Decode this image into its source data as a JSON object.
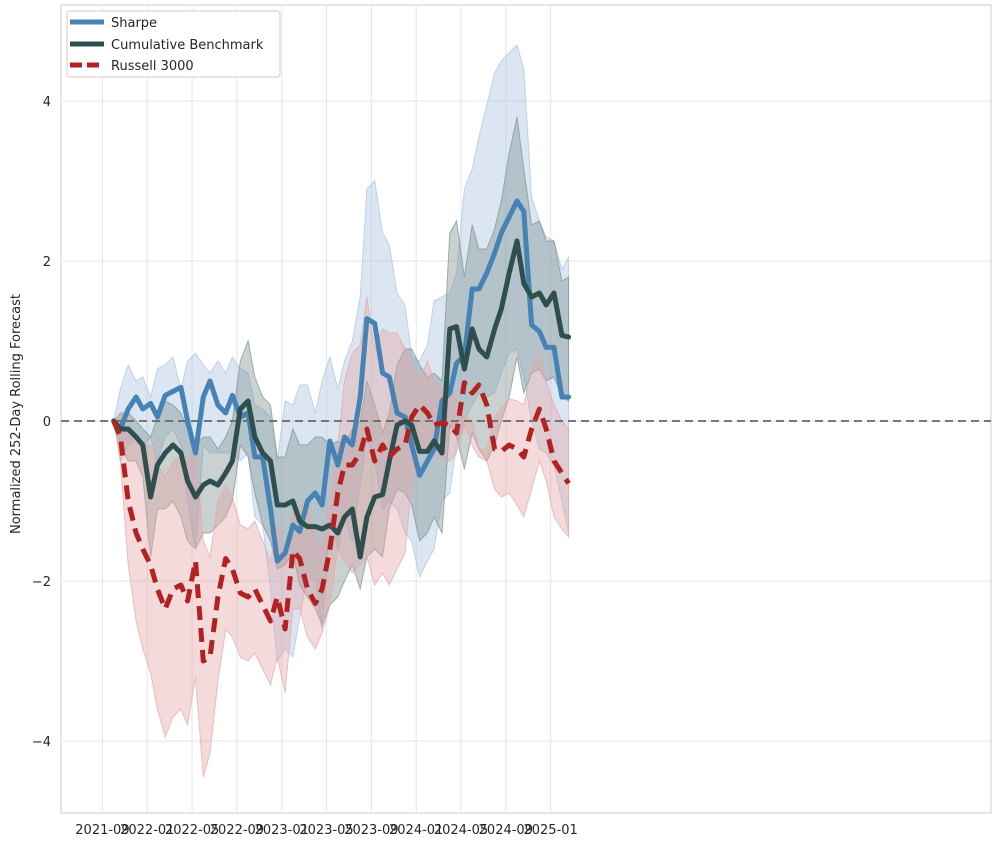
{
  "chart_data": {
    "type": "line",
    "title": "",
    "xlabel": "",
    "ylabel": "Normalized 252-Day Rolling Forecast",
    "ylim": [
      -4.9,
      5.2
    ],
    "xlim_months": [
      -3.7,
      79.3
    ],
    "x_ticks": [
      {
        "m": 0,
        "label": "2021-09"
      },
      {
        "m": 4,
        "label": "2022-01"
      },
      {
        "m": 8,
        "label": "2022-05"
      },
      {
        "m": 12,
        "label": "2022-09"
      },
      {
        "m": 16,
        "label": "2023-01"
      },
      {
        "m": 20,
        "label": "2023-05"
      },
      {
        "m": 24,
        "label": "2023-09"
      },
      {
        "m": 28,
        "label": "2024-01"
      },
      {
        "m": 32,
        "label": "2024-05"
      },
      {
        "m": 36,
        "label": "2024-09"
      },
      {
        "m": 40,
        "label": "2025-01"
      }
    ],
    "y_ticks": [
      {
        "v": -4,
        "label": "−4"
      },
      {
        "v": -2,
        "label": "−2"
      },
      {
        "v": 0,
        "label": "0"
      },
      {
        "v": 2,
        "label": "2"
      },
      {
        "v": 4,
        "label": "4"
      }
    ],
    "grid": true,
    "reference_line": {
      "y": 0,
      "style": "dashed",
      "color": "#666666"
    },
    "legend": {
      "placement": "top-left",
      "entries": [
        {
          "name": "Sharpe",
          "color": "#4682b4",
          "dash": "solid"
        },
        {
          "name": "Cumulative Benchmark",
          "color": "#2f4f4f",
          "dash": "solid"
        },
        {
          "name": "Russell 3000",
          "color": "#b22222",
          "dash": "dashed"
        }
      ]
    },
    "series": [
      {
        "name": "Sharpe",
        "color": "#4682b4",
        "band_color": "#a9c4df",
        "dash": "solid",
        "x_months": [
          1.0,
          1.6,
          2.3,
          3.0,
          3.6,
          4.3,
          4.9,
          5.6,
          6.3,
          7.0,
          7.6,
          8.3,
          9.0,
          9.6,
          10.3,
          11.0,
          11.6,
          12.3,
          13.0,
          13.6,
          14.3,
          15.0,
          15.6,
          16.3,
          17.0,
          17.6,
          18.3,
          19.0,
          19.6,
          20.3,
          21.0,
          21.6,
          22.3,
          23.0,
          23.6,
          24.3,
          25.0,
          25.6,
          26.3,
          27.0,
          27.6,
          28.3,
          29.0,
          29.6,
          30.3,
          31.0,
          31.6,
          32.3,
          33.0,
          33.6,
          34.3,
          35.0,
          35.6,
          36.3,
          37.0,
          37.6,
          38.3,
          39.0,
          39.6,
          40.3,
          41.0,
          41.6
        ],
        "values": [
          0.0,
          -0.1,
          0.15,
          0.3,
          0.15,
          0.22,
          0.05,
          0.32,
          0.37,
          0.42,
          0.0,
          -0.4,
          0.3,
          0.5,
          0.2,
          0.1,
          0.32,
          0.05,
          0.1,
          -0.45,
          -0.45,
          -1.1,
          -1.75,
          -1.65,
          -1.3,
          -1.38,
          -1.0,
          -0.9,
          -1.05,
          -0.25,
          -0.55,
          -0.2,
          -0.3,
          0.3,
          1.28,
          1.22,
          0.6,
          0.55,
          0.1,
          0.05,
          -0.3,
          -0.68,
          -0.5,
          -0.35,
          0.25,
          0.35,
          0.72,
          0.82,
          1.65,
          1.65,
          1.85,
          2.1,
          2.35,
          2.55,
          2.75,
          2.62,
          1.2,
          1.12,
          0.92,
          0.92,
          0.3,
          0.3
        ],
        "upper": [
          0.0,
          0.4,
          0.7,
          0.5,
          0.55,
          0.3,
          0.65,
          0.7,
          0.8,
          0.4,
          0.75,
          0.85,
          0.7,
          0.6,
          0.75,
          0.6,
          0.8,
          0.65,
          0.6,
          0.2,
          0.15,
          0.05,
          -0.5,
          0.25,
          0.2,
          0.45,
          0.45,
          0.1,
          0.5,
          0.8,
          0.4,
          0.75,
          1.0,
          1.55,
          2.9,
          3.0,
          2.35,
          2.2,
          1.6,
          1.45,
          0.8,
          0.75,
          0.95,
          1.5,
          1.55,
          1.6,
          1.85,
          2.9,
          3.15,
          3.55,
          3.95,
          4.35,
          4.5,
          4.6,
          4.7,
          4.4,
          2.8,
          2.5,
          2.3,
          2.25,
          1.9,
          2.05
        ],
        "lower": [
          0.0,
          -0.5,
          -0.3,
          -0.2,
          -0.3,
          -0.2,
          -0.5,
          -0.2,
          -0.1,
          -0.3,
          -1.0,
          -1.6,
          -0.3,
          -0.4,
          -0.4,
          -0.4,
          -0.4,
          -0.5,
          -0.4,
          -1.2,
          -1.3,
          -2.1,
          -3.0,
          -2.85,
          -2.95,
          -2.45,
          -1.95,
          -2.0,
          -2.6,
          -1.2,
          -1.6,
          -1.2,
          -1.5,
          -0.8,
          -0.2,
          -0.5,
          -1.1,
          -1.0,
          -1.1,
          -1.4,
          -1.5,
          -1.95,
          -1.75,
          -1.6,
          -1.0,
          -0.9,
          -0.3,
          0.0,
          0.2,
          0.35,
          0.3,
          0.35,
          0.6,
          0.85,
          0.9,
          0.55,
          0.0,
          -0.35,
          -0.4,
          -0.55,
          -1.0,
          -1.4
        ]
      },
      {
        "name": "Cumulative Benchmark",
        "color": "#2f4f4f",
        "band_color": "#7f9191",
        "dash": "solid",
        "x_months": [
          1.0,
          1.6,
          2.3,
          3.0,
          3.6,
          4.3,
          4.9,
          5.6,
          6.3,
          7.0,
          7.6,
          8.3,
          9.0,
          9.6,
          10.3,
          11.0,
          11.6,
          12.3,
          13.0,
          13.6,
          14.3,
          15.0,
          15.6,
          16.3,
          17.0,
          17.6,
          18.3,
          19.0,
          19.6,
          20.3,
          21.0,
          21.6,
          22.3,
          23.0,
          23.6,
          24.3,
          25.0,
          25.6,
          26.3,
          27.0,
          27.6,
          28.3,
          29.0,
          29.6,
          30.3,
          31.0,
          31.6,
          32.3,
          33.0,
          33.6,
          34.3,
          35.0,
          35.6,
          36.3,
          37.0,
          37.6,
          38.3,
          39.0,
          39.6,
          40.3,
          41.0,
          41.6
        ],
        "values": [
          0.0,
          -0.1,
          -0.1,
          -0.2,
          -0.3,
          -0.95,
          -0.55,
          -0.4,
          -0.3,
          -0.4,
          -0.75,
          -0.95,
          -0.8,
          -0.75,
          -0.8,
          -0.65,
          -0.5,
          0.15,
          0.25,
          -0.2,
          -0.4,
          -0.5,
          -1.05,
          -1.05,
          -1.0,
          -1.25,
          -1.32,
          -1.32,
          -1.35,
          -1.3,
          -1.4,
          -1.2,
          -1.1,
          -1.7,
          -1.2,
          -0.95,
          -0.92,
          -0.5,
          -0.05,
          0.0,
          -0.05,
          -0.38,
          -0.38,
          -0.25,
          -0.4,
          1.15,
          1.18,
          0.65,
          1.15,
          0.9,
          0.8,
          1.15,
          1.4,
          1.85,
          2.25,
          1.72,
          1.55,
          1.6,
          1.45,
          1.6,
          1.07,
          1.05
        ],
        "upper": [
          0.0,
          0.1,
          0.1,
          0.0,
          -0.1,
          -0.2,
          0.05,
          0.25,
          0.2,
          0.1,
          -0.1,
          -0.3,
          -0.2,
          -0.2,
          -0.35,
          -0.2,
          0.0,
          0.75,
          1.0,
          0.55,
          0.3,
          0.2,
          -0.45,
          -0.45,
          -0.1,
          -0.3,
          -0.3,
          -0.2,
          -0.2,
          -0.3,
          -0.25,
          -0.3,
          -0.1,
          0.0,
          0.5,
          0.2,
          -0.15,
          0.1,
          0.7,
          0.9,
          0.9,
          0.7,
          0.55,
          0.6,
          0.5,
          2.35,
          2.5,
          1.8,
          2.45,
          2.15,
          2.15,
          2.4,
          2.75,
          3.35,
          3.8,
          3.15,
          2.45,
          2.5,
          2.25,
          2.25,
          1.75,
          1.8
        ],
        "lower": [
          0.0,
          -0.3,
          -0.5,
          -0.5,
          -0.7,
          -1.7,
          -1.1,
          -1.1,
          -1.0,
          -1.2,
          -1.5,
          -1.6,
          -1.4,
          -1.4,
          -1.3,
          -1.2,
          -1.0,
          -0.3,
          -0.45,
          -0.9,
          -1.3,
          -1.5,
          -1.85,
          -1.8,
          -1.65,
          -2.05,
          -2.2,
          -2.35,
          -2.55,
          -2.3,
          -2.2,
          -2.0,
          -1.8,
          -2.1,
          -1.7,
          -1.6,
          -1.7,
          -1.1,
          -0.85,
          -0.9,
          -1.05,
          -1.5,
          -1.4,
          -1.2,
          -1.4,
          -0.05,
          -0.2,
          -0.6,
          -0.15,
          -0.35,
          -0.5,
          -0.3,
          0.0,
          0.3,
          0.8,
          0.35,
          0.6,
          0.65,
          0.5,
          0.55,
          0.3,
          0.25
        ]
      },
      {
        "name": "Russell 3000",
        "color": "#b22222",
        "band_color": "#e5a8a8",
        "dash": "dashed",
        "x_months": [
          1.0,
          1.6,
          2.3,
          3.0,
          3.6,
          4.3,
          4.9,
          5.6,
          6.3,
          7.0,
          7.6,
          8.3,
          9.0,
          9.6,
          10.3,
          11.0,
          11.6,
          12.3,
          13.0,
          13.6,
          14.3,
          15.0,
          15.6,
          16.3,
          17.0,
          17.6,
          18.3,
          19.0,
          19.6,
          20.3,
          21.0,
          21.6,
          22.3,
          23.0,
          23.6,
          24.3,
          25.0,
          25.6,
          26.3,
          27.0,
          27.6,
          28.3,
          29.0,
          29.6,
          30.3,
          31.0,
          31.6,
          32.3,
          33.0,
          33.6,
          34.3,
          35.0,
          35.6,
          36.3,
          37.0,
          37.6,
          38.3,
          39.0,
          39.6,
          40.3,
          41.0,
          41.6
        ],
        "values": [
          0.0,
          -0.2,
          -1.0,
          -1.4,
          -1.6,
          -1.8,
          -2.1,
          -2.35,
          -2.1,
          -2.05,
          -2.25,
          -1.75,
          -3.0,
          -2.95,
          -2.2,
          -1.72,
          -1.85,
          -2.15,
          -2.2,
          -2.1,
          -2.3,
          -2.5,
          -2.2,
          -2.6,
          -1.62,
          -1.72,
          -2.1,
          -2.28,
          -2.1,
          -1.6,
          -0.9,
          -0.55,
          -0.55,
          -0.4,
          -0.1,
          -0.5,
          -0.3,
          -0.45,
          -0.35,
          -0.3,
          0.05,
          0.2,
          0.1,
          -0.05,
          -0.02,
          -0.05,
          -0.15,
          0.48,
          0.35,
          0.45,
          0.2,
          -0.35,
          -0.38,
          -0.3,
          -0.35,
          -0.45,
          -0.1,
          0.15,
          -0.1,
          -0.5,
          -0.65,
          -0.78
        ],
        "upper": [
          0.0,
          0.1,
          -0.2,
          -0.15,
          -0.3,
          -0.3,
          -0.55,
          -0.7,
          -0.5,
          -0.45,
          -0.5,
          -0.3,
          -1.5,
          -1.7,
          -1.0,
          -0.8,
          -0.95,
          -1.3,
          -1.35,
          -1.25,
          -1.5,
          -1.75,
          -1.3,
          -1.75,
          -1.15,
          -1.05,
          -1.05,
          -1.45,
          -1.6,
          -1.0,
          -0.3,
          0.5,
          0.85,
          0.95,
          1.55,
          0.9,
          1.15,
          1.1,
          1.1,
          0.9,
          0.7,
          0.5,
          0.75,
          0.5,
          0.4,
          0.4,
          0.3,
          0.05,
          0.0,
          -0.35,
          -0.35,
          0.05,
          0.15,
          0.28,
          0.25,
          0.2,
          0.65,
          0.85,
          0.5,
          0.2,
          0.0,
          -0.1
        ],
        "lower": [
          0.0,
          -0.5,
          -1.8,
          -2.5,
          -2.85,
          -3.15,
          -3.6,
          -3.95,
          -3.7,
          -3.6,
          -3.8,
          -3.2,
          -4.45,
          -4.15,
          -3.25,
          -2.6,
          -2.7,
          -2.95,
          -3.0,
          -2.9,
          -3.1,
          -3.3,
          -2.95,
          -3.4,
          -2.35,
          -2.35,
          -2.7,
          -2.85,
          -2.65,
          -2.3,
          -1.6,
          -1.75,
          -1.9,
          -1.8,
          -1.7,
          -2.05,
          -1.9,
          -2.05,
          -1.85,
          -1.65,
          -0.8,
          -0.35,
          -0.4,
          -0.4,
          -0.45,
          -0.5,
          -0.4,
          -0.05,
          -0.3,
          -0.45,
          -0.5,
          -0.85,
          -0.95,
          -0.9,
          -1.05,
          -1.2,
          -0.85,
          -0.5,
          -0.75,
          -1.2,
          -1.35,
          -1.45
        ]
      }
    ]
  }
}
